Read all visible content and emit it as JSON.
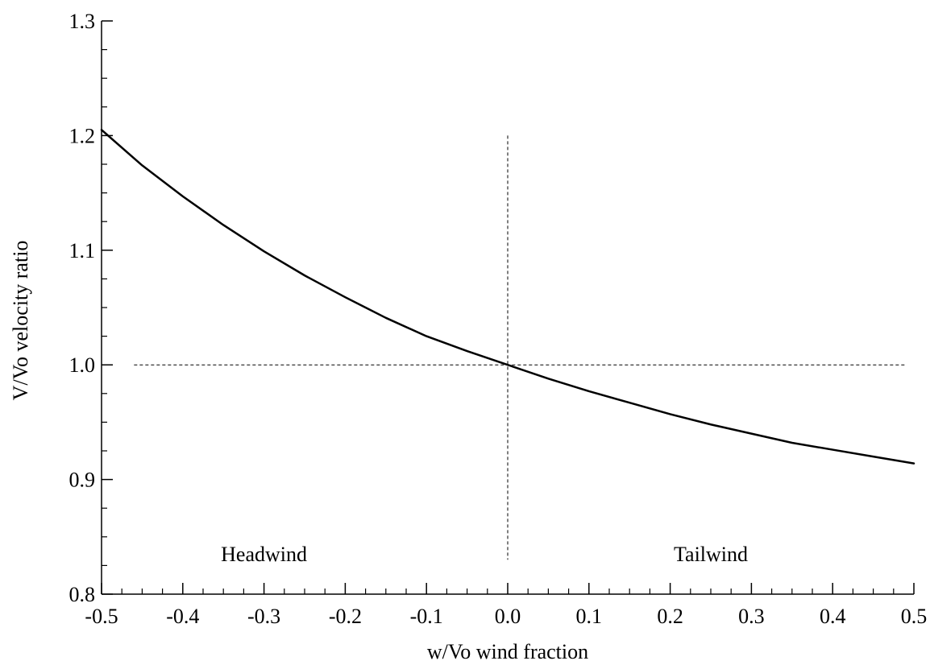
{
  "chart_data": {
    "type": "line",
    "title": "",
    "xlabel": "w/Vo  wind fraction",
    "ylabel": "V/Vo  velocity ratio",
    "xlim": [
      -0.5,
      0.5
    ],
    "ylim": [
      0.8,
      1.3
    ],
    "x_ticks": [
      -0.5,
      -0.4,
      -0.3,
      -0.2,
      -0.1,
      0.0,
      0.1,
      0.2,
      0.3,
      0.4,
      0.5
    ],
    "x_tick_labels": [
      "-0.5",
      "-0.4",
      "-0.3",
      "-0.2",
      "-0.1",
      "0.0",
      "0.1",
      "0.2",
      "0.3",
      "0.4",
      "0.5"
    ],
    "y_ticks": [
      0.8,
      0.9,
      1.0,
      1.1,
      1.2,
      1.3
    ],
    "y_tick_labels": [
      "0.8",
      "0.9",
      "1.0",
      "1.1",
      "1.2",
      "1.3"
    ],
    "grid": false,
    "series": [
      {
        "x": [
          -0.5,
          -0.45,
          -0.4,
          -0.35,
          -0.3,
          -0.25,
          -0.2,
          -0.15,
          -0.1,
          -0.05,
          0.0,
          0.05,
          0.1,
          0.15,
          0.2,
          0.25,
          0.3,
          0.35,
          0.4,
          0.45,
          0.5
        ],
        "y": [
          1.205,
          1.174,
          1.147,
          1.122,
          1.099,
          1.078,
          1.059,
          1.041,
          1.025,
          1.012,
          1.0,
          0.988,
          0.977,
          0.967,
          0.957,
          0.948,
          0.94,
          0.932,
          0.926,
          0.92,
          0.914
        ]
      }
    ],
    "reference_lines": [
      {
        "orientation": "horizontal",
        "y": 1.0,
        "x_range": [
          -0.46,
          0.49
        ],
        "style": "dashed"
      },
      {
        "orientation": "vertical",
        "x": 0.0,
        "y_range": [
          0.83,
          1.2
        ],
        "style": "dashed"
      }
    ],
    "annotations": [
      {
        "text": "Headwind",
        "x": -0.3,
        "y": 0.835
      },
      {
        "text": "Tailwind",
        "x": 0.25,
        "y": 0.835
      }
    ]
  }
}
